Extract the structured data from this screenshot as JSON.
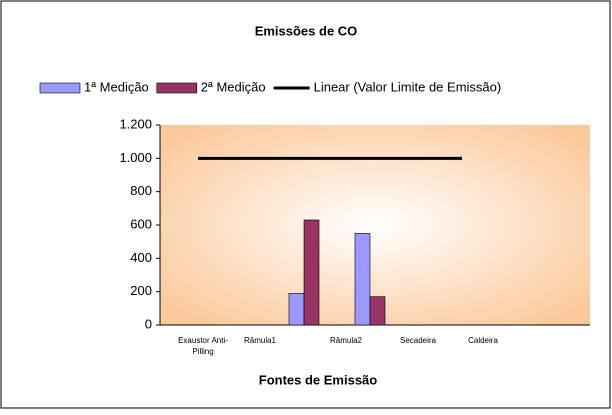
{
  "chart_data": {
    "type": "bar",
    "title": "Emissões de CO",
    "x_label": "Fontes de Emissão",
    "categories": [
      "Exaustor Anti-Pilling",
      "Râmula1",
      "Râmula2",
      "Secadeira",
      "Caldeira"
    ],
    "series": [
      {
        "name": "1ª Medição",
        "color": "#9999ff",
        "values": [
          null,
          190,
          550,
          null,
          null
        ]
      },
      {
        "name": "2ª Medição",
        "color": "#993366",
        "values": [
          null,
          630,
          170,
          null,
          null
        ]
      },
      {
        "name": "Linear (Valor Limite de Emissão)",
        "type": "line",
        "color": "#000000",
        "values": [
          1000,
          1000,
          1000,
          1000,
          1000
        ]
      }
    ],
    "ylim": [
      0,
      1200
    ],
    "yticks": [
      0,
      200,
      400,
      600,
      800,
      {
        "value": 1000,
        "label": "1.000"
      },
      {
        "value": 1200,
        "label": "1.200"
      }
    ]
  }
}
